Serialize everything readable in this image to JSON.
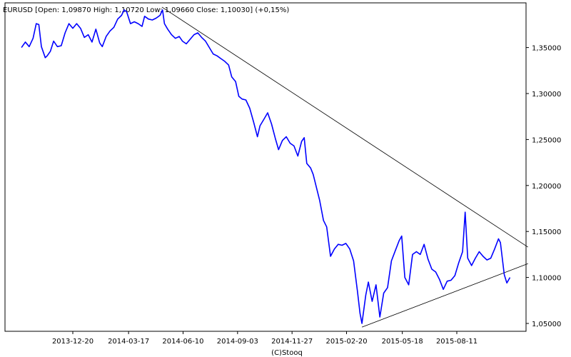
{
  "header": {
    "title": "EURUSD [Open: 1,09870  High: 1,10720  Low: 1,09660  Close: 1,10030]  (+0,15%)"
  },
  "footer": {
    "credit": "(C)Stooq"
  },
  "colors": {
    "series": "#0000ff",
    "trendline": "#000000",
    "plot_border": "#000000",
    "background": "#ffffff"
  },
  "chart_data": {
    "type": "line",
    "title": "EURUSD [Open: 1,09870  High: 1,10720  Low: 1,09660  Close: 1,10030]  (+0,15%)",
    "xlabel": "",
    "ylabel": "",
    "x_scale": "date",
    "y_scale": "linear",
    "xlim": [
      "2013-09-29",
      "2015-11-30"
    ],
    "ylim": [
      1.04,
      1.4
    ],
    "grid": false,
    "legend": "none",
    "x_ticks": [
      {
        "date": "2013-12-20",
        "label": "2013-12-20"
      },
      {
        "date": "2014-03-17",
        "label": "2014-03-17"
      },
      {
        "date": "2014-06-10",
        "label": "2014-06-10"
      },
      {
        "date": "2014-09-03",
        "label": "2014-09-03"
      },
      {
        "date": "2014-11-27",
        "label": "2014-11-27"
      },
      {
        "date": "2015-02-20",
        "label": "2015-02-20"
      },
      {
        "date": "2015-05-18",
        "label": "2015-05-18"
      },
      {
        "date": "2015-08-11",
        "label": "2015-08-11"
      }
    ],
    "y_ticks": [
      {
        "value": 1.35,
        "label": "1,35000"
      },
      {
        "value": 1.3,
        "label": "1,30000"
      },
      {
        "value": 1.25,
        "label": "1,25000"
      },
      {
        "value": 1.2,
        "label": "1,20000"
      },
      {
        "value": 1.15,
        "label": "1,15000"
      },
      {
        "value": 1.1,
        "label": "1,10000"
      },
      {
        "value": 1.05,
        "label": "1,05000"
      }
    ],
    "series": [
      {
        "values": [
          [
            "2013-10-01",
            1.35
          ],
          [
            "2013-10-07",
            1.356
          ],
          [
            "2013-10-13",
            1.351
          ],
          [
            "2013-10-19",
            1.36
          ],
          [
            "2013-10-24",
            1.376
          ],
          [
            "2013-10-28",
            1.375
          ],
          [
            "2013-11-01",
            1.351
          ],
          [
            "2013-11-07",
            1.339
          ],
          [
            "2013-11-10",
            1.341
          ],
          [
            "2013-11-15",
            1.346
          ],
          [
            "2013-11-20",
            1.357
          ],
          [
            "2013-11-26",
            1.351
          ],
          [
            "2013-12-02",
            1.352
          ],
          [
            "2013-12-08",
            1.366
          ],
          [
            "2013-12-14",
            1.376
          ],
          [
            "2013-12-20",
            1.371
          ],
          [
            "2013-12-26",
            1.376
          ],
          [
            "2014-01-01",
            1.371
          ],
          [
            "2014-01-07",
            1.361
          ],
          [
            "2014-01-13",
            1.364
          ],
          [
            "2014-01-19",
            1.356
          ],
          [
            "2014-01-25",
            1.37
          ],
          [
            "2014-01-31",
            1.355
          ],
          [
            "2014-02-04",
            1.351
          ],
          [
            "2014-02-10",
            1.362
          ],
          [
            "2014-02-16",
            1.368
          ],
          [
            "2014-02-22",
            1.372
          ],
          [
            "2014-02-28",
            1.381
          ],
          [
            "2014-03-06",
            1.385
          ],
          [
            "2014-03-10",
            1.391
          ],
          [
            "2014-03-14",
            1.389
          ],
          [
            "2014-03-20",
            1.376
          ],
          [
            "2014-03-26",
            1.378
          ],
          [
            "2014-04-01",
            1.376
          ],
          [
            "2014-04-07",
            1.373
          ],
          [
            "2014-04-11",
            1.384
          ],
          [
            "2014-04-17",
            1.381
          ],
          [
            "2014-04-23",
            1.38
          ],
          [
            "2014-04-29",
            1.382
          ],
          [
            "2014-05-05",
            1.385
          ],
          [
            "2014-05-09",
            1.391
          ],
          [
            "2014-05-12",
            1.376
          ],
          [
            "2014-05-17",
            1.37
          ],
          [
            "2014-05-23",
            1.364
          ],
          [
            "2014-05-29",
            1.36
          ],
          [
            "2014-06-04",
            1.362
          ],
          [
            "2014-06-09",
            1.357
          ],
          [
            "2014-06-15",
            1.354
          ],
          [
            "2014-06-21",
            1.359
          ],
          [
            "2014-06-27",
            1.364
          ],
          [
            "2014-07-03",
            1.366
          ],
          [
            "2014-07-09",
            1.361
          ],
          [
            "2014-07-15",
            1.357
          ],
          [
            "2014-07-21",
            1.35
          ],
          [
            "2014-07-27",
            1.343
          ],
          [
            "2014-08-02",
            1.341
          ],
          [
            "2014-08-08",
            1.338
          ],
          [
            "2014-08-14",
            1.335
          ],
          [
            "2014-08-20",
            1.331
          ],
          [
            "2014-08-25",
            1.318
          ],
          [
            "2014-08-31",
            1.313
          ],
          [
            "2014-09-05",
            1.297
          ],
          [
            "2014-09-10",
            1.294
          ],
          [
            "2014-09-16",
            1.293
          ],
          [
            "2014-09-22",
            1.284
          ],
          [
            "2014-09-28",
            1.269
          ],
          [
            "2014-10-04",
            1.253
          ],
          [
            "2014-10-08",
            1.265
          ],
          [
            "2014-10-14",
            1.272
          ],
          [
            "2014-10-20",
            1.279
          ],
          [
            "2014-10-26",
            1.267
          ],
          [
            "2014-11-01",
            1.251
          ],
          [
            "2014-11-06",
            1.239
          ],
          [
            "2014-11-12",
            1.249
          ],
          [
            "2014-11-18",
            1.253
          ],
          [
            "2014-11-24",
            1.246
          ],
          [
            "2014-11-30",
            1.243
          ],
          [
            "2014-12-06",
            1.232
          ],
          [
            "2014-12-12",
            1.248
          ],
          [
            "2014-12-16",
            1.252
          ],
          [
            "2014-12-20",
            1.224
          ],
          [
            "2014-12-26",
            1.219
          ],
          [
            "2014-12-30",
            1.212
          ],
          [
            "2015-01-04",
            1.198
          ],
          [
            "2015-01-09",
            1.184
          ],
          [
            "2015-01-15",
            1.162
          ],
          [
            "2015-01-20",
            1.155
          ],
          [
            "2015-01-26",
            1.123
          ],
          [
            "2015-02-01",
            1.131
          ],
          [
            "2015-02-07",
            1.136
          ],
          [
            "2015-02-13",
            1.135
          ],
          [
            "2015-02-19",
            1.137
          ],
          [
            "2015-02-25",
            1.131
          ],
          [
            "2015-03-03",
            1.118
          ],
          [
            "2015-03-09",
            1.085
          ],
          [
            "2015-03-13",
            1.061
          ],
          [
            "2015-03-16",
            1.05
          ],
          [
            "2015-03-22",
            1.081
          ],
          [
            "2015-03-26",
            1.095
          ],
          [
            "2015-04-01",
            1.074
          ],
          [
            "2015-04-07",
            1.092
          ],
          [
            "2015-04-13",
            1.057
          ],
          [
            "2015-04-19",
            1.083
          ],
          [
            "2015-04-25",
            1.089
          ],
          [
            "2015-05-01",
            1.118
          ],
          [
            "2015-05-07",
            1.129
          ],
          [
            "2015-05-13",
            1.14
          ],
          [
            "2015-05-17",
            1.145
          ],
          [
            "2015-05-22",
            1.1
          ],
          [
            "2015-05-28",
            1.092
          ],
          [
            "2015-06-03",
            1.125
          ],
          [
            "2015-06-09",
            1.128
          ],
          [
            "2015-06-15",
            1.125
          ],
          [
            "2015-06-21",
            1.136
          ],
          [
            "2015-06-27",
            1.12
          ],
          [
            "2015-07-03",
            1.109
          ],
          [
            "2015-07-09",
            1.106
          ],
          [
            "2015-07-15",
            1.098
          ],
          [
            "2015-07-21",
            1.087
          ],
          [
            "2015-07-27",
            1.096
          ],
          [
            "2015-08-02",
            1.097
          ],
          [
            "2015-08-08",
            1.102
          ],
          [
            "2015-08-14",
            1.116
          ],
          [
            "2015-08-20",
            1.128
          ],
          [
            "2015-08-24",
            1.171
          ],
          [
            "2015-08-28",
            1.121
          ],
          [
            "2015-09-03",
            1.113
          ],
          [
            "2015-09-09",
            1.121
          ],
          [
            "2015-09-15",
            1.128
          ],
          [
            "2015-09-21",
            1.123
          ],
          [
            "2015-09-27",
            1.119
          ],
          [
            "2015-10-03",
            1.121
          ],
          [
            "2015-10-09",
            1.131
          ],
          [
            "2015-10-15",
            1.142
          ],
          [
            "2015-10-18",
            1.138
          ],
          [
            "2015-10-24",
            1.103
          ],
          [
            "2015-10-28",
            1.094
          ],
          [
            "2015-11-02",
            1.1
          ]
        ]
      }
    ],
    "trendlines": [
      {
        "start": [
          "2014-05-08",
          1.394
        ],
        "end": [
          "2015-11-30",
          1.133
        ]
      },
      {
        "start": [
          "2015-03-16",
          1.046
        ],
        "end": [
          "2015-11-30",
          1.115
        ]
      }
    ]
  }
}
